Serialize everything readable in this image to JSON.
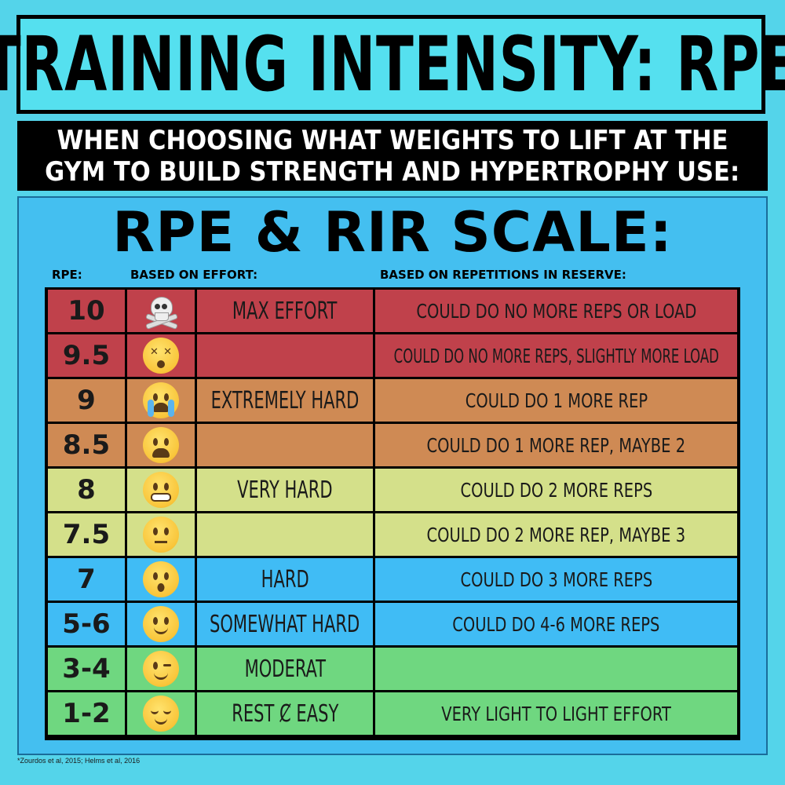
{
  "title": "TRAINING INTENSITY: RPE",
  "subtitle": {
    "line1": "WHEN CHOOSING WHAT WEIGHTS TO LIFT AT THE",
    "line2": "GYM TO BUILD STRENGTH AND HYPERTROPHY USE:"
  },
  "scale_title": "RPE & RIR SCALE:",
  "headers": {
    "rpe": "RPE:",
    "effort": "BASED ON EFFORT:",
    "reserve": "BASED ON REPETITIONS IN RESERVE:"
  },
  "rows": [
    {
      "rpe": "10",
      "icon": "skull-crossbones-icon",
      "effort": "MAX EFFORT",
      "reserve": "COULD DO NO MORE REPS OR LOAD",
      "color": "#c0414b"
    },
    {
      "rpe": "9.5",
      "icon": "dizzy-face-icon",
      "effort": "",
      "reserve": "COULD DO NO MORE REPS, SLIGHTLY MORE LOAD",
      "color": "#c0414b"
    },
    {
      "rpe": "9",
      "icon": "crying-face-icon",
      "effort": "EXTREMELY HARD",
      "reserve": "COULD DO 1 MORE REP",
      "color": "#cf8a54"
    },
    {
      "rpe": "8.5",
      "icon": "weary-face-icon",
      "effort": "",
      "reserve": "COULD DO 1 MORE REP, MAYBE 2",
      "color": "#cf8a54"
    },
    {
      "rpe": "8",
      "icon": "grimacing-face-icon",
      "effort": "VERY HARD",
      "reserve": "COULD DO 2 MORE REPS",
      "color": "#d4e08a"
    },
    {
      "rpe": "7.5",
      "icon": "neutral-face-icon",
      "effort": "",
      "reserve": "COULD DO 2 MORE REP, MAYBE 3",
      "color": "#d4e08a"
    },
    {
      "rpe": "7",
      "icon": "hushed-face-icon",
      "effort": "HARD",
      "reserve": "COULD DO 3 MORE REPS",
      "color": "#40bcf5"
    },
    {
      "rpe": "5-6",
      "icon": "slightly-smiling-face-icon",
      "effort": "SOMEWHAT HARD",
      "reserve": "COULD DO 4-6 MORE REPS",
      "color": "#40bcf5"
    },
    {
      "rpe": "3-4",
      "icon": "winking-face-icon",
      "effort": "MODERAT",
      "reserve": "",
      "color": "#6fd780"
    },
    {
      "rpe": "1-2",
      "icon": "relieved-face-icon",
      "effort": "REST Ȼ EASY",
      "reserve": "VERY LIGHT TO LIGHT EFFORT",
      "color": "#6fd780"
    }
  ],
  "footnote": "*Zourdos et al, 2015; Helms et al, 2016"
}
